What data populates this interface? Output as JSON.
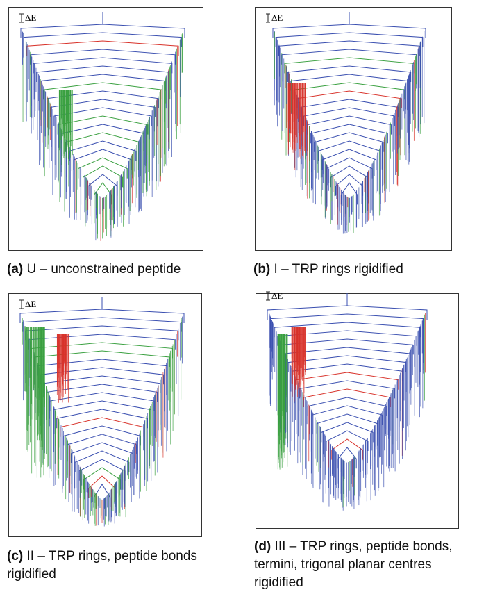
{
  "panels": [
    {
      "delta_e_label": "ΔE",
      "caption_label": "(a)",
      "caption_text": "U – unconstrained peptide"
    },
    {
      "delta_e_label": "ΔE",
      "caption_label": "(b)",
      "caption_text": "I – TRP rings rigidified"
    },
    {
      "delta_e_label": "ΔE",
      "caption_label": "(c)",
      "caption_text": "II – TRP rings, peptide bonds rigidified"
    },
    {
      "delta_e_label": "ΔE",
      "caption_label": "(d)",
      "caption_text": "III – TRP rings, peptide bonds, termini, trigonal planar centres rigidified"
    }
  ]
}
